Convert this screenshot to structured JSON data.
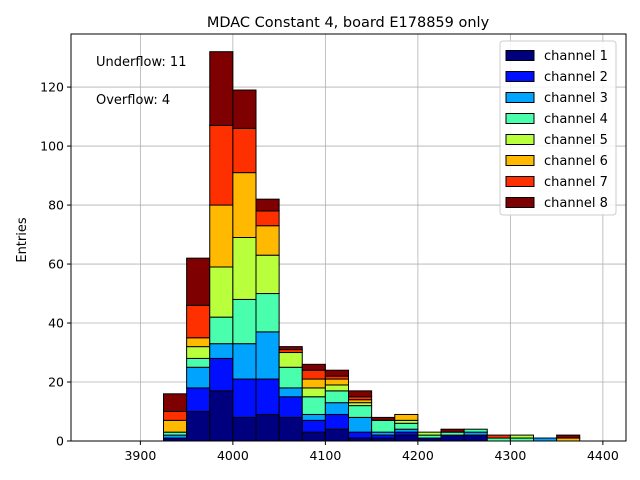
{
  "chart_data": {
    "type": "bar",
    "stacked": true,
    "title": "MDAC Constant 4, board E178859 only",
    "xlabel": "",
    "ylabel": "Entries",
    "xlim": [
      3825,
      4425
    ],
    "ylim": [
      0,
      138
    ],
    "xticks": [
      3900,
      4000,
      4100,
      4200,
      4300,
      4400
    ],
    "yticks": [
      0,
      20,
      40,
      60,
      80,
      100,
      120
    ],
    "grid": true,
    "legend_position": "top-right",
    "annotations": [
      "Underflow: 11",
      "Overflow: 4"
    ],
    "bin_width": 25,
    "bins": [
      3850,
      3875,
      3900,
      3925,
      3950,
      3975,
      4000,
      4025,
      4050,
      4075,
      4100,
      4125,
      4150,
      4175,
      4200,
      4225,
      4250,
      4275,
      4300,
      4325,
      4350,
      4375
    ],
    "series": [
      {
        "name": "channel 1",
        "color": "#00007f",
        "values": [
          0,
          0,
          0,
          1,
          10,
          17,
          8,
          9,
          8,
          3,
          4,
          1,
          1,
          2,
          1,
          2,
          2,
          0,
          0,
          0,
          0,
          0
        ]
      },
      {
        "name": "channel 2",
        "color": "#0010ff",
        "values": [
          0,
          0,
          0,
          0,
          8,
          11,
          13,
          12,
          7,
          4,
          5,
          2,
          1,
          1,
          0,
          0,
          0,
          0,
          0,
          0,
          0,
          0
        ]
      },
      {
        "name": "channel 3",
        "color": "#00a4ff",
        "values": [
          0,
          0,
          0,
          1,
          7,
          5,
          12,
          16,
          3,
          2,
          4,
          5,
          1,
          1,
          0,
          0,
          1,
          0,
          0,
          1,
          0,
          0
        ]
      },
      {
        "name": "channel 4",
        "color": "#49ffad",
        "values": [
          0,
          0,
          0,
          1,
          3,
          9,
          15,
          13,
          7,
          6,
          4,
          4,
          4,
          2,
          1,
          1,
          1,
          1,
          1,
          0,
          0,
          0
        ]
      },
      {
        "name": "channel 5",
        "color": "#b9ff3c",
        "values": [
          0,
          0,
          0,
          0,
          4,
          17,
          21,
          13,
          5,
          3,
          2,
          1,
          0,
          1,
          1,
          0,
          0,
          0,
          1,
          0,
          0,
          0
        ]
      },
      {
        "name": "channel 6",
        "color": "#ffb900",
        "values": [
          0,
          0,
          0,
          4,
          3,
          21,
          22,
          10,
          0,
          3,
          2,
          1,
          0,
          2,
          0,
          0,
          0,
          0,
          0,
          0,
          1,
          0
        ]
      },
      {
        "name": "channel 7",
        "color": "#ff3000",
        "values": [
          0,
          0,
          0,
          3,
          11,
          27,
          15,
          5,
          1,
          3,
          1,
          1,
          0,
          0,
          0,
          0,
          0,
          1,
          0,
          0,
          0,
          0
        ]
      },
      {
        "name": "channel 8",
        "color": "#7f0000",
        "values": [
          0,
          0,
          0,
          6,
          16,
          25,
          13,
          4,
          1,
          2,
          2,
          2,
          1,
          0,
          0,
          1,
          0,
          0,
          0,
          0,
          1,
          0
        ]
      }
    ]
  }
}
